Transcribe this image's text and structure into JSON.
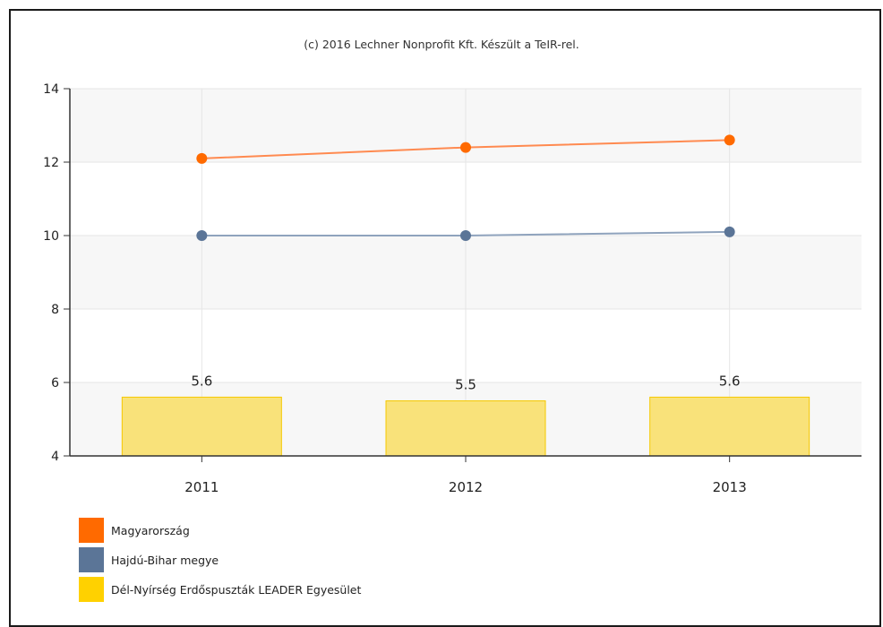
{
  "chart_data": {
    "type": "bar",
    "credit": "(c) 2016 Lechner Nonprofit Kft. Készült a TeIR-rel.",
    "categories": [
      "2011",
      "2012",
      "2013"
    ],
    "ylim": [
      4,
      14
    ],
    "yticks": [
      "4",
      "6",
      "8",
      "10",
      "12",
      "14"
    ],
    "grid": true,
    "legend_position": "bottom-left",
    "series": [
      {
        "name": "Magyarország",
        "type": "line",
        "color": "#ff6a00",
        "line_color": "#ff8a50",
        "values": [
          12.1,
          12.4,
          12.6
        ]
      },
      {
        "name": "Hajdú-Bihar megye",
        "type": "line",
        "color": "#5b7597",
        "line_color": "#8fa3bd",
        "values": [
          10.0,
          10.0,
          10.1
        ]
      },
      {
        "name": "Dél-Nyírség Erdőspuszták LEADER Egyesület",
        "type": "bar",
        "color": "#f9e27a",
        "border_color": "#f5c800",
        "legend_color": "#ffd100",
        "values": [
          5.6,
          5.5,
          5.6
        ],
        "data_labels": [
          "5.6",
          "5.5",
          "5.6"
        ]
      }
    ]
  }
}
